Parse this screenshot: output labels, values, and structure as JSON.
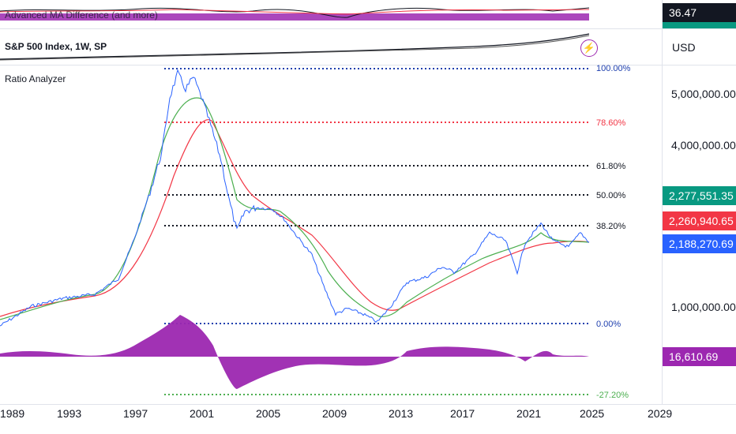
{
  "top_pane": {
    "indicator_title": "Advanced MA Difference (and more)",
    "value_tag": "36.47",
    "value_tag_color": "#131722"
  },
  "middle_pane": {
    "symbol_title": "S&P 500 Index, 1W, SP",
    "currency": "USD",
    "alert_icon": "lightning-bolt-icon"
  },
  "main_pane": {
    "indicator_title": "Ratio Analyzer",
    "price_axis": [
      "5,000,000.00",
      "4,000,000.00",
      "1,000,000.00"
    ],
    "price_tags": [
      {
        "value": "2,277,551.35",
        "color": "#089981"
      },
      {
        "value": "2,260,940.65",
        "color": "#f23645"
      },
      {
        "value": "2,188,270.69",
        "color": "#2962ff"
      }
    ],
    "oscillator_tag": {
      "value": "16,610.69",
      "color": "#9c27b0"
    },
    "fib_levels": [
      {
        "label": "100.00%",
        "color": "#1e3fae"
      },
      {
        "label": "78.60%",
        "color": "#f23645"
      },
      {
        "label": "61.80%",
        "color": "#131722"
      },
      {
        "label": "50.00%",
        "color": "#131722"
      },
      {
        "label": "38.20%",
        "color": "#131722"
      },
      {
        "label": "0.00%",
        "color": "#1e3fae"
      },
      {
        "label": "-27.20%",
        "color": "#4caf50"
      }
    ]
  },
  "time_axis": [
    "1989",
    "1993",
    "1997",
    "2001",
    "2005",
    "2009",
    "2013",
    "2017",
    "2021",
    "2025",
    "2029"
  ],
  "colors": {
    "ratio_line": "#2962ff",
    "fast_ma": "#4caf50",
    "slow_ma": "#f23645",
    "oscillator": "#9c27b0"
  }
}
